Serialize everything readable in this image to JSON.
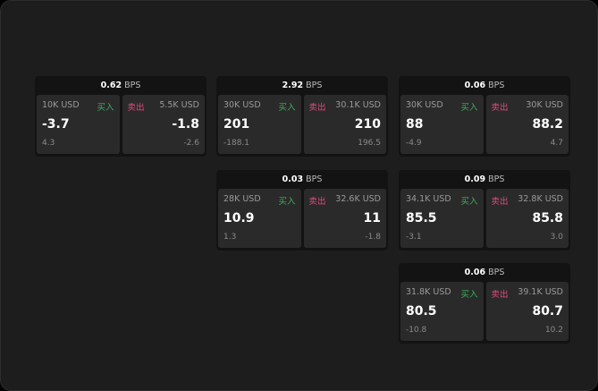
{
  "colors": {
    "buy": "#3dae5c",
    "sell": "#e04a7c",
    "background": "#1d1d1d"
  },
  "unit": "BPS",
  "buy_label": "买入",
  "sell_label": "卖出",
  "cards": [
    {
      "spread": "0.62",
      "buy": {
        "qty": "10K USD",
        "price": "-3.7",
        "change": "4.3"
      },
      "sell": {
        "qty": "5.5K USD",
        "price": "-1.8",
        "change": "-2.6"
      }
    },
    {
      "spread": "2.92",
      "buy": {
        "qty": "30K USD",
        "price": "201",
        "change": "-188.1"
      },
      "sell": {
        "qty": "30.1K USD",
        "price": "210",
        "change": "196.5"
      }
    },
    {
      "spread": "0.06",
      "buy": {
        "qty": "30K USD",
        "price": "88",
        "change": "-4.9"
      },
      "sell": {
        "qty": "30K USD",
        "price": "88.2",
        "change": "4.7"
      }
    },
    {
      "spread": "0.03",
      "buy": {
        "qty": "28K USD",
        "price": "10.9",
        "change": "1.3"
      },
      "sell": {
        "qty": "32.6K USD",
        "price": "11",
        "change": "-1.8"
      }
    },
    {
      "spread": "0.09",
      "buy": {
        "qty": "34.1K USD",
        "price": "85.5",
        "change": "-3.1"
      },
      "sell": {
        "qty": "32.8K USD",
        "price": "85.8",
        "change": "3.0"
      }
    },
    {
      "spread": "0.06",
      "buy": {
        "qty": "31.8K USD",
        "price": "80.5",
        "change": "-10.8"
      },
      "sell": {
        "qty": "39.1K USD",
        "price": "80.7",
        "change": "10.2"
      }
    }
  ]
}
